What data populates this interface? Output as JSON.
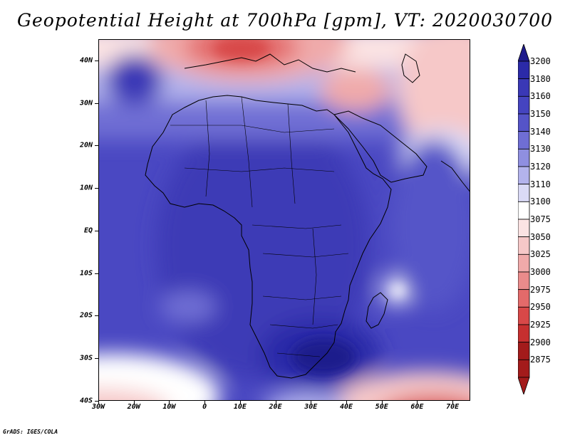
{
  "title": "Geopotential Height at 700hPa [gpm], VT: 2020030700",
  "credit": "GrADS: IGES/COLA",
  "map": {
    "lat_labels": [
      "40N",
      "30N",
      "20N",
      "10N",
      "EQ",
      "10S",
      "20S",
      "30S",
      "40S"
    ],
    "lat_values": [
      40,
      30,
      20,
      10,
      0,
      -10,
      -20,
      -30,
      -40
    ],
    "lon_labels": [
      "30W",
      "20W",
      "10W",
      "0",
      "10E",
      "20E",
      "30E",
      "40E",
      "50E",
      "60E",
      "70E"
    ],
    "lon_values": [
      -30,
      -20,
      -10,
      0,
      10,
      20,
      30,
      40,
      50,
      60,
      70
    ],
    "lon_range": [
      -30,
      75
    ],
    "lat_range": [
      -40,
      45
    ],
    "features": [
      {
        "name": "low-heights-europe",
        "lon": 10,
        "lat": 43,
        "level": 2975
      },
      {
        "name": "low-heights-middle-east",
        "lon": 42,
        "lat": 33,
        "level": 3025
      },
      {
        "name": "low-heights-central-asia",
        "lon": 72,
        "lat": 37,
        "level": 3050
      },
      {
        "name": "ridge-south-africa",
        "lon": 27,
        "lat": -30,
        "level": 3180
      },
      {
        "name": "low-heights-southwest",
        "lon": -25,
        "lat": -38,
        "level": 3050
      },
      {
        "name": "low-heights-southeast",
        "lon": 65,
        "lat": -40,
        "level": 2950
      },
      {
        "name": "weak-low-madagascar-east",
        "lon": 55,
        "lat": -15,
        "level": 3100
      }
    ]
  },
  "legend": {
    "levels": [
      "3200",
      "3180",
      "3160",
      "3150",
      "3140",
      "3130",
      "3120",
      "3110",
      "3100",
      "3075",
      "3050",
      "3025",
      "3000",
      "2975",
      "2950",
      "2925",
      "2900",
      "2875"
    ],
    "colors": [
      "#1f1b8c",
      "#2b2aa8",
      "#3a38b6",
      "#4544c0",
      "#5554c8",
      "#6f6ed4",
      "#8f8fe0",
      "#b3b3ec",
      "#dadaf6",
      "#ffffff",
      "#fbe3e3",
      "#f6c8c8",
      "#f0aaaa",
      "#ea8b8b",
      "#e36a6a",
      "#d84848",
      "#c62f2f",
      "#a31b1b"
    ]
  }
}
